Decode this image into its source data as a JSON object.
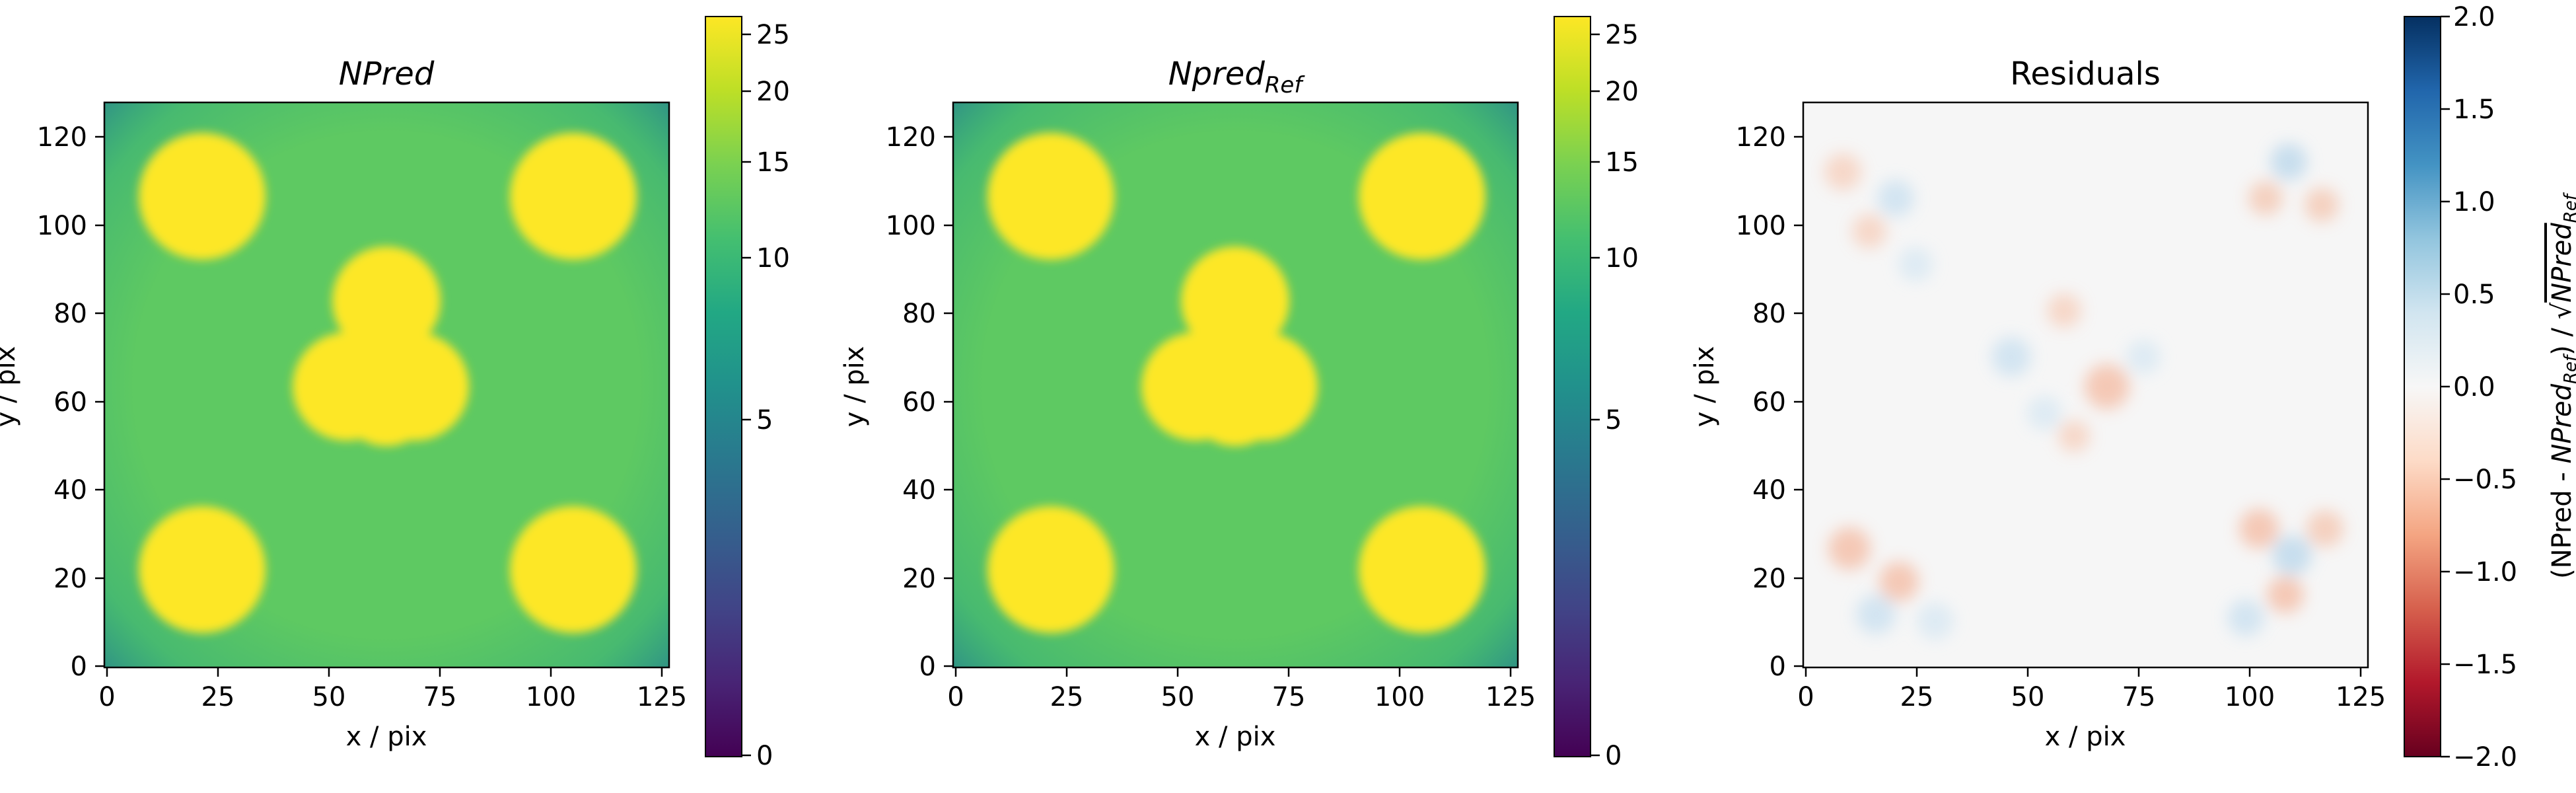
{
  "chart_data": [
    {
      "type": "heatmap",
      "title": "NPred",
      "title_style": "italic",
      "xlabel": "x / pix",
      "ylabel": "y / pix",
      "xlim": [
        0,
        127
      ],
      "ylim": [
        0,
        127
      ],
      "xticks": [
        "0",
        "25",
        "50",
        "75",
        "100",
        "125"
      ],
      "yticks": [
        "0",
        "20",
        "40",
        "60",
        "80",
        "100",
        "120"
      ],
      "colormap": "viridis",
      "color_scale": "sqrt",
      "zlim": [
        0,
        26.5
      ],
      "colorbar_ticks": [
        "0",
        "5",
        "10",
        "15",
        "20",
        "25"
      ],
      "background_level": 11.5,
      "sources": [
        {
          "x": 22,
          "y": 22,
          "radius": 14,
          "value": 26
        },
        {
          "x": 106,
          "y": 22,
          "radius": 14,
          "value": 26
        },
        {
          "x": 22,
          "y": 106,
          "radius": 14,
          "value": 26
        },
        {
          "x": 106,
          "y": 106,
          "radius": 14,
          "value": 26
        },
        {
          "x": 63,
          "y": 63,
          "radius": 18,
          "value": 26
        }
      ]
    },
    {
      "type": "heatmap",
      "title": "Npred",
      "title_subscript": "Ref",
      "title_style": "italic",
      "xlabel": "x / pix",
      "ylabel": "y / pix",
      "xlim": [
        0,
        127
      ],
      "ylim": [
        0,
        127
      ],
      "xticks": [
        "0",
        "25",
        "50",
        "75",
        "100",
        "125"
      ],
      "yticks": [
        "0",
        "20",
        "40",
        "60",
        "80",
        "100",
        "120"
      ],
      "colormap": "viridis",
      "color_scale": "sqrt",
      "zlim": [
        0,
        26.5
      ],
      "colorbar_ticks": [
        "0",
        "5",
        "10",
        "15",
        "20",
        "25"
      ],
      "background_level": 11.5,
      "sources": [
        {
          "x": 22,
          "y": 22,
          "radius": 14,
          "value": 26
        },
        {
          "x": 106,
          "y": 22,
          "radius": 14,
          "value": 26
        },
        {
          "x": 22,
          "y": 106,
          "radius": 14,
          "value": 26
        },
        {
          "x": 106,
          "y": 106,
          "radius": 14,
          "value": 26
        },
        {
          "x": 63,
          "y": 63,
          "radius": 18,
          "value": 26
        }
      ]
    },
    {
      "type": "heatmap",
      "title": "Residuals",
      "xlabel": "x / pix",
      "ylabel": "y / pix",
      "xlim": [
        0,
        127
      ],
      "ylim": [
        0,
        127
      ],
      "xticks": [
        "0",
        "25",
        "50",
        "75",
        "100",
        "125"
      ],
      "yticks": [
        "0",
        "20",
        "40",
        "60",
        "80",
        "100",
        "120"
      ],
      "colormap": "RdBu",
      "zlim": [
        -2.0,
        2.0
      ],
      "colorbar_ticks": [
        "2.0",
        "1.5",
        "1.0",
        "0.5",
        "0.0",
        "−0.5",
        "−1.0",
        "−1.5",
        "−2.0"
      ],
      "colorbar_label_prefix": "(NPred - ",
      "colorbar_label_ref": "NPred",
      "colorbar_label_sub": "Ref",
      "colorbar_label_mid": ") / √",
      "colorbar_label_ref2": "NPred",
      "colorbar_label_sub2": "Ref"
    }
  ]
}
